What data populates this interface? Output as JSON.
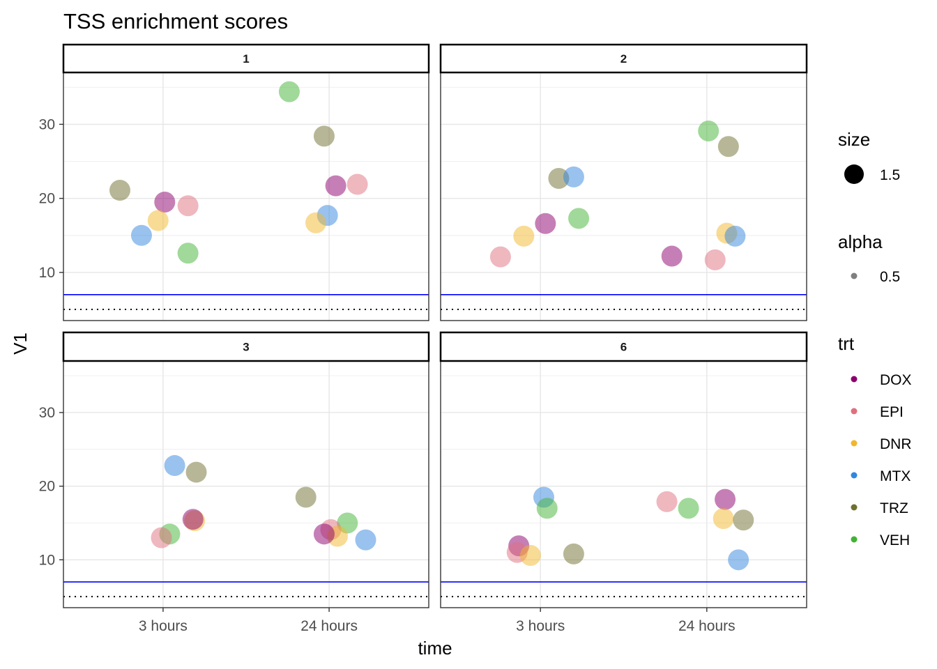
{
  "chart_data": {
    "type": "scatter",
    "title": "TSS enrichment scores",
    "xlabel": "time",
    "ylabel": "V1",
    "x_categories": [
      "3 hours",
      "24 hours"
    ],
    "y_ticks": [
      10,
      20,
      30
    ],
    "ylim": [
      3.5,
      37
    ],
    "reference_lines": [
      {
        "y": 7,
        "style": "solid",
        "color": "#0000ff"
      },
      {
        "y": 5,
        "style": "dotted",
        "color": "#000000"
      }
    ],
    "grid": true,
    "legend_position": "right",
    "legends": {
      "size": {
        "title": "size",
        "label": "1.5"
      },
      "alpha": {
        "title": "alpha",
        "label": "0.5"
      },
      "trt": {
        "title": "trt",
        "items": [
          {
            "name": "DOX",
            "color": "#8B006D"
          },
          {
            "name": "EPI",
            "color": "#DF707E"
          },
          {
            "name": "DNR",
            "color": "#F1B72B"
          },
          {
            "name": "MTX",
            "color": "#3386DD"
          },
          {
            "name": "TRZ",
            "color": "#707031"
          },
          {
            "name": "VEH",
            "color": "#41B333"
          }
        ]
      }
    },
    "panels": [
      {
        "label": "1",
        "points": [
          {
            "trt": "TRZ",
            "time": "3 hours",
            "x": 0.74,
            "y": 21.1
          },
          {
            "trt": "DOX",
            "time": "3 hours",
            "x": 1.01,
            "y": 19.5
          },
          {
            "trt": "EPI",
            "time": "3 hours",
            "x": 1.15,
            "y": 19.0
          },
          {
            "trt": "DNR",
            "time": "3 hours",
            "x": 0.97,
            "y": 17.0
          },
          {
            "trt": "MTX",
            "time": "3 hours",
            "x": 0.87,
            "y": 15.0
          },
          {
            "trt": "VEH",
            "time": "3 hours",
            "x": 1.15,
            "y": 12.6
          },
          {
            "trt": "VEH",
            "time": "24 hours",
            "x": 1.76,
            "y": 34.4
          },
          {
            "trt": "TRZ",
            "time": "24 hours",
            "x": 1.97,
            "y": 28.4
          },
          {
            "trt": "EPI",
            "time": "24 hours",
            "x": 2.17,
            "y": 21.9
          },
          {
            "trt": "DOX",
            "time": "24 hours",
            "x": 2.04,
            "y": 21.7
          },
          {
            "trt": "MTX",
            "time": "24 hours",
            "x": 1.99,
            "y": 17.7
          },
          {
            "trt": "DNR",
            "time": "24 hours",
            "x": 1.92,
            "y": 16.7
          }
        ]
      },
      {
        "label": "2",
        "points": [
          {
            "trt": "TRZ",
            "time": "3 hours",
            "x": 1.11,
            "y": 22.7
          },
          {
            "trt": "MTX",
            "time": "3 hours",
            "x": 1.2,
            "y": 22.9
          },
          {
            "trt": "VEH",
            "time": "3 hours",
            "x": 1.23,
            "y": 17.3
          },
          {
            "trt": "DOX",
            "time": "3 hours",
            "x": 1.03,
            "y": 16.6
          },
          {
            "trt": "DNR",
            "time": "3 hours",
            "x": 0.9,
            "y": 14.9
          },
          {
            "trt": "EPI",
            "time": "3 hours",
            "x": 0.76,
            "y": 12.1
          },
          {
            "trt": "VEH",
            "time": "24 hours",
            "x": 2.01,
            "y": 29.1
          },
          {
            "trt": "TRZ",
            "time": "24 hours",
            "x": 2.13,
            "y": 27.0
          },
          {
            "trt": "DNR",
            "time": "24 hours",
            "x": 2.12,
            "y": 15.3
          },
          {
            "trt": "MTX",
            "time": "24 hours",
            "x": 2.17,
            "y": 14.9
          },
          {
            "trt": "DOX",
            "time": "24 hours",
            "x": 1.79,
            "y": 12.2
          },
          {
            "trt": "EPI",
            "time": "24 hours",
            "x": 2.05,
            "y": 11.7
          }
        ]
      },
      {
        "label": "3",
        "points": [
          {
            "trt": "MTX",
            "time": "3 hours",
            "x": 1.07,
            "y": 22.8
          },
          {
            "trt": "TRZ",
            "time": "3 hours",
            "x": 1.2,
            "y": 21.9
          },
          {
            "trt": "DNR",
            "time": "3 hours",
            "x": 1.19,
            "y": 15.3
          },
          {
            "trt": "DOX",
            "time": "3 hours",
            "x": 1.18,
            "y": 15.5
          },
          {
            "trt": "VEH",
            "time": "3 hours",
            "x": 1.04,
            "y": 13.5
          },
          {
            "trt": "EPI",
            "time": "3 hours",
            "x": 0.99,
            "y": 13.0
          },
          {
            "trt": "TRZ",
            "time": "24 hours",
            "x": 1.86,
            "y": 18.5
          },
          {
            "trt": "VEH",
            "time": "24 hours",
            "x": 2.11,
            "y": 15.0
          },
          {
            "trt": "EPI",
            "time": "24 hours",
            "x": 2.01,
            "y": 14.1
          },
          {
            "trt": "DNR",
            "time": "24 hours",
            "x": 2.05,
            "y": 13.2
          },
          {
            "trt": "DOX",
            "time": "24 hours",
            "x": 1.97,
            "y": 13.5
          },
          {
            "trt": "MTX",
            "time": "24 hours",
            "x": 2.22,
            "y": 12.7
          }
        ]
      },
      {
        "label": "6",
        "points": [
          {
            "trt": "MTX",
            "time": "3 hours",
            "x": 1.02,
            "y": 18.5
          },
          {
            "trt": "VEH",
            "time": "3 hours",
            "x": 1.04,
            "y": 17.0
          },
          {
            "trt": "DOX",
            "time": "3 hours",
            "x": 0.87,
            "y": 11.9
          },
          {
            "trt": "EPI",
            "time": "3 hours",
            "x": 0.86,
            "y": 11.0
          },
          {
            "trt": "DNR",
            "time": "3 hours",
            "x": 0.94,
            "y": 10.6
          },
          {
            "trt": "TRZ",
            "time": "3 hours",
            "x": 1.2,
            "y": 10.8
          },
          {
            "trt": "EPI",
            "time": "24 hours",
            "x": 1.76,
            "y": 17.9
          },
          {
            "trt": "VEH",
            "time": "24 hours",
            "x": 1.89,
            "y": 17.0
          },
          {
            "trt": "DOX",
            "time": "24 hours",
            "x": 2.11,
            "y": 18.2
          },
          {
            "trt": "DNR",
            "time": "24 hours",
            "x": 2.1,
            "y": 15.6
          },
          {
            "trt": "TRZ",
            "time": "24 hours",
            "x": 2.22,
            "y": 15.4
          },
          {
            "trt": "MTX",
            "time": "24 hours",
            "x": 2.19,
            "y": 10.0
          }
        ]
      }
    ]
  }
}
